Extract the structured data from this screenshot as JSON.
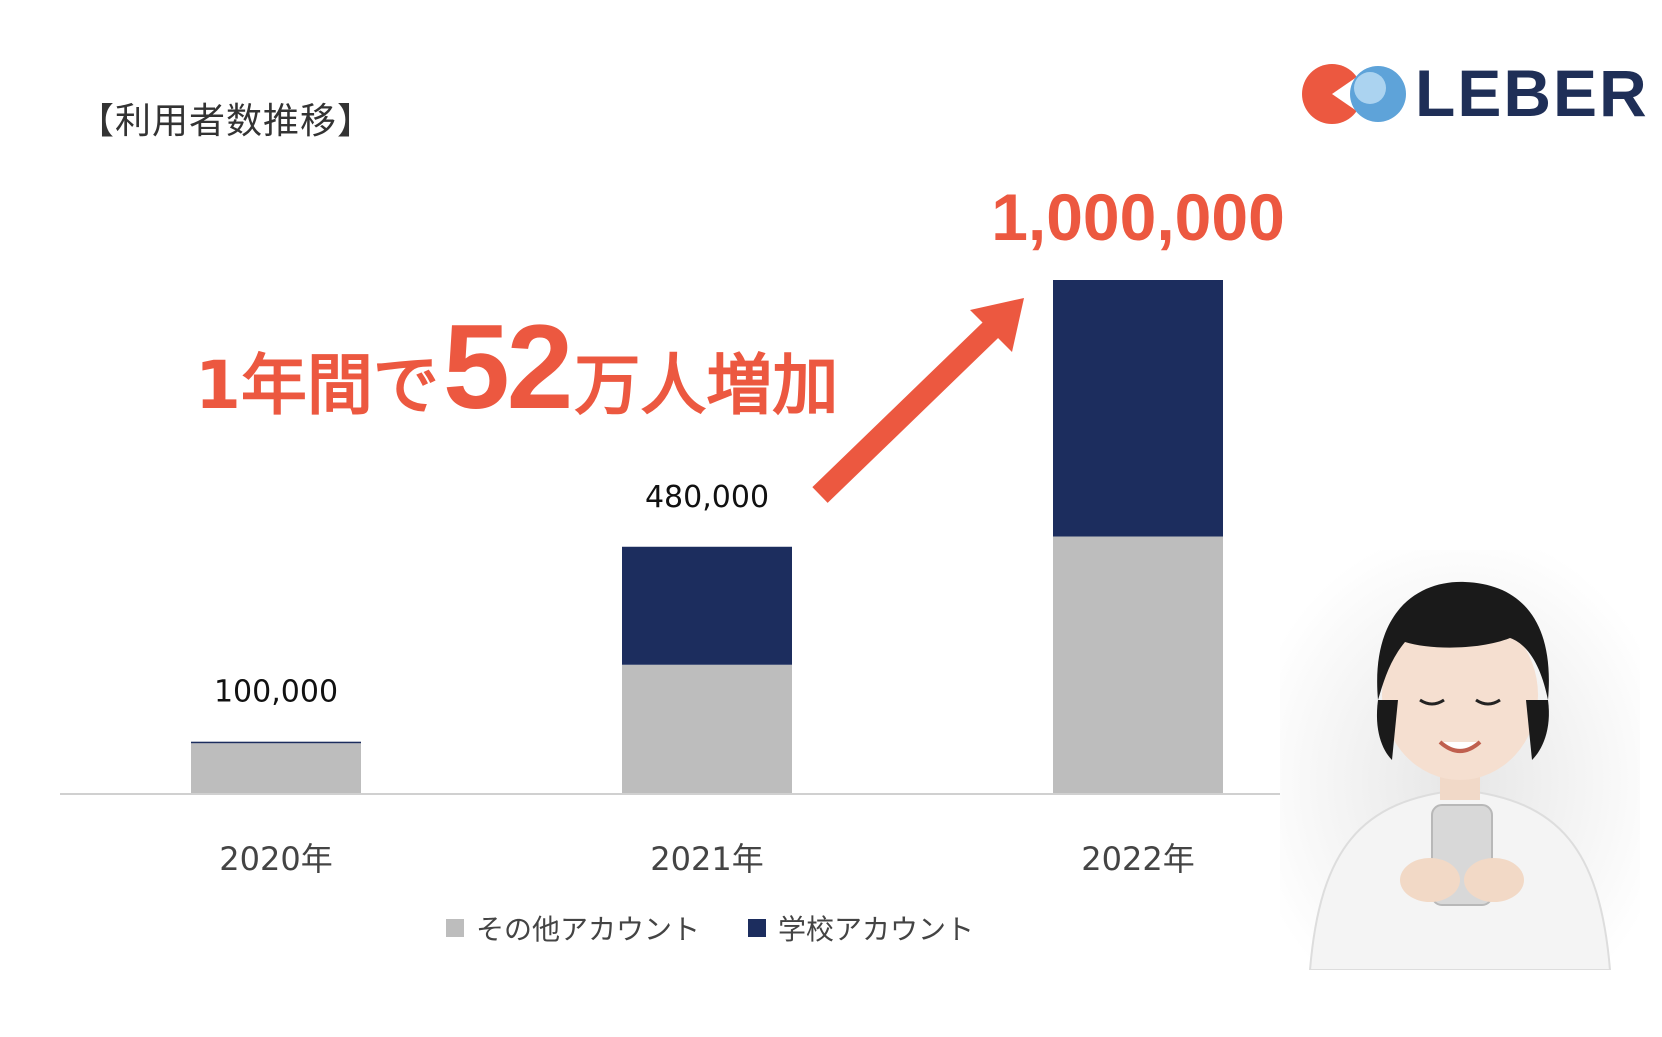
{
  "page_title": "【利用者数推移】",
  "brand": {
    "name": "LEBER"
  },
  "headline": {
    "pre": "1年間で",
    "number": "52",
    "post": "万人増加"
  },
  "colors": {
    "other": "#bdbdbd",
    "school": "#1c2d5e",
    "accent": "#ec5840"
  },
  "chart_data": {
    "type": "bar",
    "stacked": true,
    "categories": [
      "2020年",
      "2021年",
      "2022年"
    ],
    "series": [
      {
        "name": "その他アカウント",
        "values": [
          97000,
          250000,
          500000
        ]
      },
      {
        "name": "学校アカウント",
        "values": [
          3000,
          230000,
          500000
        ]
      }
    ],
    "total_labels": [
      "100,000",
      "480,000",
      "1,000,000"
    ],
    "ylim": [
      0,
      1000000
    ],
    "legend": "bottom",
    "grid": false
  }
}
